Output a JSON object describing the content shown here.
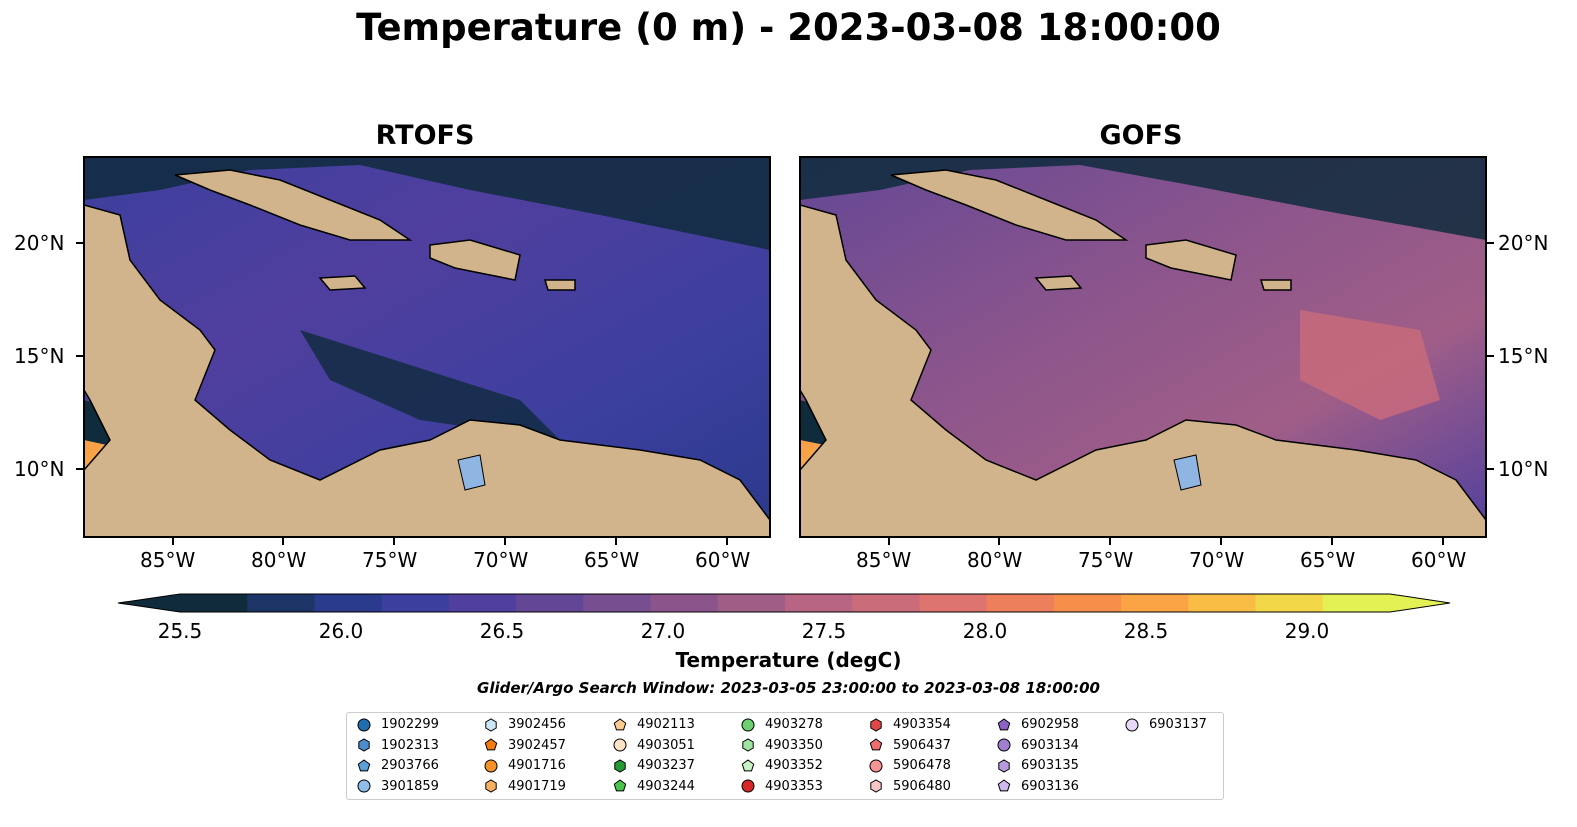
{
  "title": "Temperature (0 m) - 2023-03-08 18:00:00",
  "panels": [
    {
      "title": "RTOFS"
    },
    {
      "title": "GOFS"
    }
  ],
  "lon_labels": [
    "85°W",
    "80°W",
    "75°W",
    "70°W",
    "65°W",
    "60°W"
  ],
  "lat_labels": [
    "20°N",
    "15°N",
    "10°N"
  ],
  "colorbar": {
    "label": "Temperature (degC)",
    "ticks": [
      "25.5",
      "26.0",
      "26.5",
      "27.0",
      "27.5",
      "28.0",
      "28.5",
      "29.0"
    ],
    "colors": [
      "#0f2b3c",
      "#1c3566",
      "#2a3a8c",
      "#3c3f9e",
      "#503f9e",
      "#634796",
      "#774e90",
      "#8b558c",
      "#a05e87",
      "#b76582",
      "#cb6c7b",
      "#de7470",
      "#ee7f5c",
      "#f78f4a",
      "#faa445",
      "#f9bd45",
      "#f2d849",
      "#e3f155"
    ]
  },
  "search_window": "Glider/Argo Search Window: 2023-03-05 23:00:00 to 2023-03-08 18:00:00",
  "legend": [
    {
      "id": "1902299",
      "shape": "circle",
      "color": "#1f6fb0"
    },
    {
      "id": "1902313",
      "shape": "hexagon",
      "color": "#4a8ccc"
    },
    {
      "id": "2903766",
      "shape": "pentagon",
      "color": "#5da0d8"
    },
    {
      "id": "3901859",
      "shape": "circle",
      "color": "#8fbde8"
    },
    {
      "id": "3902456",
      "shape": "hexagon",
      "color": "#cde6f8"
    },
    {
      "id": "3902457",
      "shape": "pentagon",
      "color": "#f57c10"
    },
    {
      "id": "4901716",
      "shape": "circle",
      "color": "#f7912a"
    },
    {
      "id": "4901719",
      "shape": "hexagon",
      "color": "#f9b060"
    },
    {
      "id": "4902113",
      "shape": "pentagon",
      "color": "#fbcb90"
    },
    {
      "id": "4903051",
      "shape": "circle",
      "color": "#fde3c6"
    },
    {
      "id": "4903237",
      "shape": "hexagon",
      "color": "#249a34"
    },
    {
      "id": "4903244",
      "shape": "pentagon",
      "color": "#4cc44c"
    },
    {
      "id": "4903278",
      "shape": "circle",
      "color": "#6cd070"
    },
    {
      "id": "4903350",
      "shape": "hexagon",
      "color": "#9fe49f"
    },
    {
      "id": "4903352",
      "shape": "pentagon",
      "color": "#c9f3c5"
    },
    {
      "id": "4903353",
      "shape": "circle",
      "color": "#d62728"
    },
    {
      "id": "4903354",
      "shape": "hexagon",
      "color": "#e04848"
    },
    {
      "id": "5906437",
      "shape": "pentagon",
      "color": "#ef6e6e"
    },
    {
      "id": "5906478",
      "shape": "circle",
      "color": "#f59494"
    },
    {
      "id": "5906480",
      "shape": "hexagon",
      "color": "#f9c6c6"
    },
    {
      "id": "6902958",
      "shape": "pentagon",
      "color": "#8a63c4"
    },
    {
      "id": "6903134",
      "shape": "circle",
      "color": "#a07ed0"
    },
    {
      "id": "6903135",
      "shape": "hexagon",
      "color": "#b89ae0"
    },
    {
      "id": "6903136",
      "shape": "pentagon",
      "color": "#cfb8ec"
    },
    {
      "id": "6903137",
      "shape": "circle",
      "color": "#e6d8f6"
    }
  ]
}
